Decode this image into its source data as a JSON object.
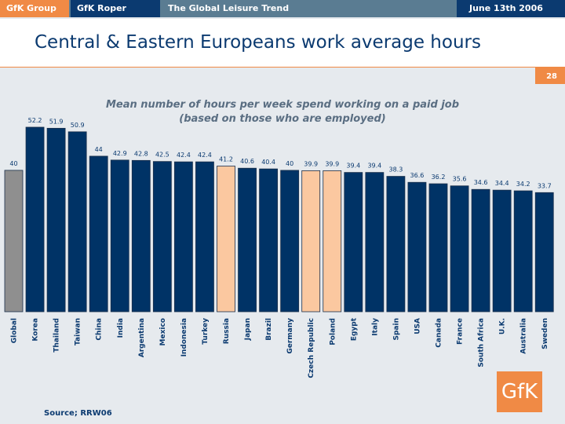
{
  "header": {
    "tab1": "GfK Group",
    "tab2": "GfK Roper",
    "tab3": "The Global Leisure Trend",
    "date": "June 13th 2006"
  },
  "title": "Central & Eastern Europeans work average hours",
  "page_number": "28",
  "source": "Source; RRW06",
  "logo_text": "GfK",
  "colors": {
    "accent_orange": "#f08a45",
    "navy": "#0b3a70",
    "bar_global": "#8f8f8f",
    "bar_highlight": "#fbc8a0",
    "bar_default": "#003366"
  },
  "chart_data": {
    "type": "bar",
    "title": "Mean number of hours per week spend working on a paid job",
    "subtitle": "(based on those who are employed)",
    "categories": [
      "Global",
      "Korea",
      "Thailand",
      "Taiwan",
      "China",
      "India",
      "Argentina",
      "Mexico",
      "Indonesia",
      "Turkey",
      "Russia",
      "Japan",
      "Brazil",
      "Germany",
      "Czech Republic",
      "Poland",
      "Egypt",
      "Italy",
      "Spain",
      "USA",
      "Canada",
      "France",
      "South Africa",
      "U.K.",
      "Australia",
      "Sweden"
    ],
    "values": [
      40,
      52.2,
      51.9,
      50.9,
      44,
      42.9,
      42.8,
      42.5,
      42.4,
      42.4,
      41.2,
      40.6,
      40.4,
      40,
      39.9,
      39.9,
      39.4,
      39.4,
      38.3,
      36.6,
      36.2,
      35.6,
      34.6,
      34.4,
      34.2,
      33.7
    ],
    "labels": [
      "40",
      "52.2",
      "51.9",
      "50.9",
      "44",
      "42.9",
      "42.8",
      "42.5",
      "42.4",
      "42.4",
      "41.2",
      "40.6",
      "40.4",
      "40",
      "39.9",
      "39.9",
      "39.4",
      "39.4",
      "38.3",
      "36.6",
      "36.2",
      "35.6",
      "34.6",
      "34.4",
      "34.2",
      "33.7"
    ],
    "bar_kind": [
      "global",
      "default",
      "default",
      "default",
      "default",
      "default",
      "default",
      "default",
      "default",
      "default",
      "highlight",
      "default",
      "default",
      "default",
      "highlight",
      "highlight",
      "default",
      "default",
      "default",
      "default",
      "default",
      "default",
      "default",
      "default",
      "default",
      "default"
    ],
    "xlabel": "",
    "ylabel": "",
    "ylim": [
      0,
      52.2
    ],
    "grid": false,
    "legend": "none"
  }
}
